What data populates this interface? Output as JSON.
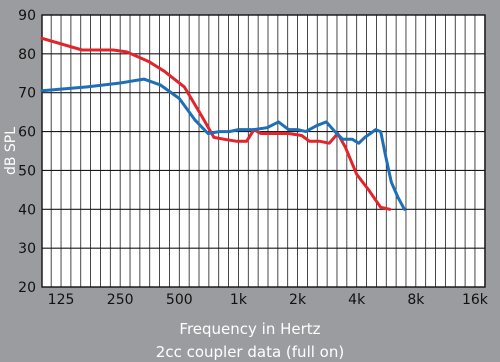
{
  "chart_data": {
    "type": "line",
    "title": "",
    "xlabel": "Frequency in Hertz",
    "ylabel": "dB SPL",
    "caption": "2cc coupler data (full on)",
    "x_scale": "log",
    "x_ticks": [
      "125",
      "250",
      "500",
      "1k",
      "2k",
      "4k",
      "8k",
      "16k"
    ],
    "x_tick_values": [
      125,
      250,
      500,
      1000,
      2000,
      4000,
      8000,
      16000
    ],
    "xlim": [
      100,
      18000
    ],
    "ylim": [
      20,
      90
    ],
    "y_ticks": [
      20,
      30,
      40,
      50,
      60,
      70,
      80,
      90
    ],
    "grid": true,
    "series": [
      {
        "color": "#e2242b",
        "x": [
          100,
          160,
          230,
          270,
          350,
          420,
          530,
          650,
          750,
          850,
          980,
          1100,
          1200,
          1300,
          1500,
          1800,
          2100,
          2300,
          2600,
          2900,
          3200,
          3500,
          4000,
          4600,
          5300,
          5900
        ],
        "y": [
          84,
          81,
          81,
          80.5,
          78,
          75.5,
          71.5,
          64,
          58.5,
          58,
          57.5,
          57.5,
          60.5,
          59.5,
          59.5,
          59.5,
          59,
          57.5,
          57.5,
          57,
          59.5,
          56,
          49,
          45,
          40.5,
          40
        ]
      },
      {
        "color": "#1f6fb8",
        "x": [
          100,
          170,
          250,
          330,
          400,
          500,
          600,
          700,
          800,
          900,
          1000,
          1200,
          1400,
          1600,
          1800,
          2000,
          2200,
          2500,
          2800,
          3100,
          3400,
          3800,
          4100,
          4400,
          4700,
          5000,
          5300,
          5600,
          6000,
          6500,
          7000
        ],
        "y": [
          70.5,
          71.5,
          72.5,
          73.5,
          72,
          68.5,
          63,
          59.5,
          60,
          60,
          60.5,
          60.5,
          61,
          62.5,
          60.5,
          60.5,
          60,
          61.5,
          62.5,
          60,
          58,
          58,
          57,
          58.5,
          59.5,
          60.5,
          60,
          54,
          47,
          43,
          40
        ]
      }
    ]
  }
}
